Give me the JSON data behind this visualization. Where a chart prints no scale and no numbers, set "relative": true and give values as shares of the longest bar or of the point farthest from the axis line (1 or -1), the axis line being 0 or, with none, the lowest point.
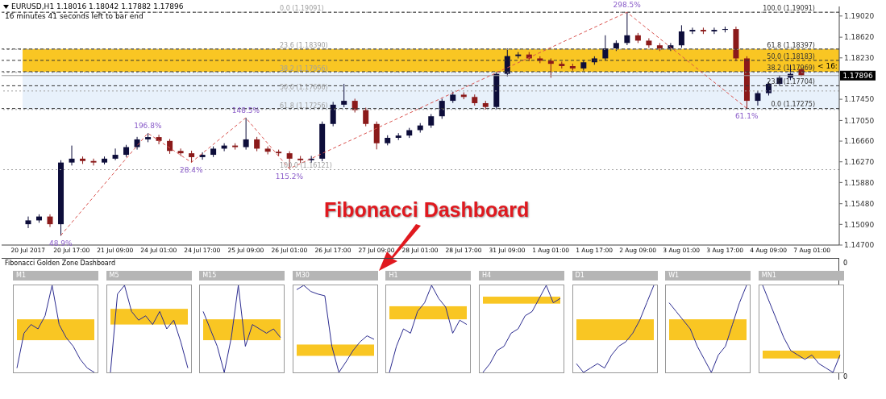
{
  "chart_data": [
    {
      "type": "candlestick",
      "title": "EURUSD,H1  1.18016 1.18042 1.17882 1.17896",
      "subtitle": "16 minutes 41 seconds left to bar end",
      "categories": [
        "20 Jul 2017",
        null,
        null,
        null,
        "20 Jul 17:00",
        null,
        null,
        null,
        "21 Jul 09:00",
        null,
        null,
        null,
        "24 Jul 01:00",
        null,
        null,
        null,
        "24 Jul 17:00",
        null,
        null,
        null,
        "25 Jul 09:00",
        null,
        null,
        null,
        "26 Jul 01:00",
        null,
        null,
        null,
        "26 Jul 17:00",
        null,
        null,
        null,
        "27 Jul 09:00",
        null,
        null,
        null,
        "28 Jul 01:00",
        null,
        null,
        null,
        "28 Jul 17:00",
        null,
        null,
        null,
        "31 Jul 09:00",
        null,
        null,
        null,
        "1 Aug 01:00",
        null,
        null,
        null,
        "1 Aug 17:00",
        null,
        null,
        null,
        "2 Aug 09:00",
        null,
        null,
        null,
        "3 Aug 01:00",
        null,
        null,
        null,
        "3 Aug 17:00",
        null,
        null,
        null,
        "4 Aug 09:00",
        null,
        null,
        null,
        "7 Aug 01:00",
        null,
        null
      ],
      "ohlc": [
        [
          1.15093,
          1.15238,
          1.1502,
          1.15165
        ],
        [
          1.15165,
          1.1528,
          1.1512,
          1.15238
        ],
        [
          1.15238,
          1.1528,
          1.1504,
          1.15093
        ],
        [
          1.15093,
          1.163,
          1.14875,
          1.16256
        ],
        [
          1.16256,
          1.16576,
          1.162,
          1.16329
        ],
        [
          1.16329,
          1.1637,
          1.1623,
          1.16285
        ],
        [
          1.16285,
          1.1633,
          1.162,
          1.16256
        ],
        [
          1.16256,
          1.1637,
          1.1622,
          1.16329
        ],
        [
          1.16329,
          1.1652,
          1.163,
          1.16402
        ],
        [
          1.16402,
          1.1659,
          1.1636,
          1.16547
        ],
        [
          1.16547,
          1.1674,
          1.165,
          1.16693
        ],
        [
          1.16693,
          1.16809,
          1.1664,
          1.16736
        ],
        [
          1.16736,
          1.1678,
          1.166,
          1.16664
        ],
        [
          1.16664,
          1.167,
          1.1642,
          1.16475
        ],
        [
          1.16475,
          1.1652,
          1.1638,
          1.16431
        ],
        [
          1.16431,
          1.1648,
          1.16256,
          1.16358
        ],
        [
          1.16358,
          1.1645,
          1.1631,
          1.16402
        ],
        [
          1.16402,
          1.1656,
          1.1636,
          1.16518
        ],
        [
          1.16518,
          1.1662,
          1.1647,
          1.16576
        ],
        [
          1.16576,
          1.1662,
          1.165,
          1.16547
        ],
        [
          1.16547,
          1.171,
          1.165,
          1.16693
        ],
        [
          1.16693,
          1.1674,
          1.1647,
          1.16518
        ],
        [
          1.16518,
          1.1656,
          1.1641,
          1.1646
        ],
        [
          1.1646,
          1.165,
          1.1638,
          1.16431
        ],
        [
          1.16431,
          1.1647,
          1.1614,
          1.16329
        ],
        [
          1.16329,
          1.1638,
          1.1625,
          1.163
        ],
        [
          1.163,
          1.1638,
          1.1625,
          1.16329
        ],
        [
          1.16329,
          1.1703,
          1.1628,
          1.16984
        ],
        [
          1.16984,
          1.174,
          1.1694,
          1.17347
        ],
        [
          1.17347,
          1.1774,
          1.173,
          1.1742
        ],
        [
          1.1742,
          1.1746,
          1.172,
          1.17245
        ],
        [
          1.17245,
          1.1729,
          1.1694,
          1.16984
        ],
        [
          1.16984,
          1.1703,
          1.16504,
          1.1662
        ],
        [
          1.1662,
          1.1677,
          1.1658,
          1.16722
        ],
        [
          1.16722,
          1.1681,
          1.1668,
          1.16765
        ],
        [
          1.16765,
          1.1691,
          1.1672,
          1.16867
        ],
        [
          1.16867,
          1.17,
          1.1682,
          1.16955
        ],
        [
          1.16955,
          1.1717,
          1.1691,
          1.17129
        ],
        [
          1.17129,
          1.1746,
          1.1708,
          1.1742
        ],
        [
          1.1742,
          1.17594,
          1.1738,
          1.17536
        ],
        [
          1.17536,
          1.1758,
          1.1745,
          1.17493
        ],
        [
          1.17493,
          1.1754,
          1.1733,
          1.17376
        ],
        [
          1.17376,
          1.1742,
          1.17256,
          1.17304
        ],
        [
          1.17304,
          1.1797,
          1.1726,
          1.17929
        ],
        [
          1.17929,
          1.18409,
          1.1788,
          1.18264
        ],
        [
          1.18264,
          1.1834,
          1.1822,
          1.18293
        ],
        [
          1.18293,
          1.1834,
          1.1817,
          1.1822
        ],
        [
          1.1822,
          1.1826,
          1.1813,
          1.18176
        ],
        [
          1.18176,
          1.1822,
          1.17856,
          1.18118
        ],
        [
          1.18118,
          1.1816,
          1.1803,
          1.18075
        ],
        [
          1.18075,
          1.1812,
          1.1799,
          1.18031
        ],
        [
          1.18031,
          1.1819,
          1.1799,
          1.18147
        ],
        [
          1.18147,
          1.1826,
          1.181,
          1.1822
        ],
        [
          1.1822,
          1.18656,
          1.1818,
          1.18409
        ],
        [
          1.18409,
          1.1856,
          1.1836,
          1.18511
        ],
        [
          1.18511,
          1.19091,
          1.1847,
          1.18656
        ],
        [
          1.18656,
          1.187,
          1.1851,
          1.18555
        ],
        [
          1.18555,
          1.186,
          1.1842,
          1.18467
        ],
        [
          1.18467,
          1.1851,
          1.1836,
          1.18409
        ],
        [
          1.18409,
          1.1851,
          1.1836,
          1.18467
        ],
        [
          1.18467,
          1.18845,
          1.1842,
          1.18729
        ],
        [
          1.18729,
          1.188,
          1.1868,
          1.18758
        ],
        [
          1.18758,
          1.188,
          1.1868,
          1.18729
        ],
        [
          1.18729,
          1.188,
          1.1868,
          1.18758
        ],
        [
          1.18758,
          1.1882,
          1.1871,
          1.18773
        ],
        [
          1.18773,
          1.1882,
          1.1817,
          1.1822
        ],
        [
          1.1822,
          1.1826,
          1.17275,
          1.1742
        ],
        [
          1.1742,
          1.1761,
          1.1733,
          1.17565
        ],
        [
          1.17565,
          1.1778,
          1.1752,
          1.1774
        ],
        [
          1.1774,
          1.179,
          1.177,
          1.17856
        ],
        [
          1.17856,
          1.181,
          1.1781,
          1.17929
        ],
        [
          1.18016,
          1.18042,
          1.17882,
          1.17896
        ],
        null,
        null,
        null
      ],
      "colors": [
        "#0d0d3a",
        "#0d0d3a",
        "#8b1a1a",
        "#0d0d3a",
        "#0d0d3a",
        "#8b1a1a",
        "#8b1a1a",
        "#0d0d3a",
        "#0d0d3a",
        "#0d0d3a",
        "#0d0d3a",
        "#0d0d3a",
        "#8b1a1a",
        "#8b1a1a",
        "#8b1a1a",
        "#8b1a1a",
        "#0d0d3a",
        "#0d0d3a",
        "#0d0d3a",
        "#8b1a1a",
        "#0d0d3a",
        "#8b1a1a",
        "#8b1a1a",
        "#8b1a1a",
        "#8b1a1a",
        "#8b1a1a",
        "#0d0d3a",
        "#0d0d3a",
        "#0d0d3a",
        "#0d0d3a",
        "#8b1a1a",
        "#8b1a1a",
        "#8b1a1a",
        "#0d0d3a",
        "#0d0d3a",
        "#0d0d3a",
        "#0d0d3a",
        "#0d0d3a",
        "#0d0d3a",
        "#0d0d3a",
        "#8b1a1a",
        "#8b1a1a",
        "#8b1a1a",
        "#0d0d3a",
        "#0d0d3a",
        "#0d0d3a",
        "#8b1a1a",
        "#8b1a1a",
        "#8b1a1a",
        "#8b1a1a",
        "#8b1a1a",
        "#0d0d3a",
        "#0d0d3a",
        "#0d0d3a",
        "#0d0d3a",
        "#0d0d3a",
        "#8b1a1a",
        "#8b1a1a",
        "#8b1a1a",
        "#0d0d3a",
        "#0d0d3a",
        "#0d0d3a",
        "#8b1a1a",
        "#0d0d3a",
        "#0d0d3a",
        "#8b1a1a",
        "#8b1a1a",
        "#0d0d3a",
        "#0d0d3a",
        "#0d0d3a",
        "#0d0d3a",
        "#8b1a1a",
        null,
        null,
        null
      ],
      "series": [
        {
          "type": "line",
          "color": "#d9534f",
          "line_style": "dashed",
          "values": [
            null,
            null,
            null,
            1.1488,
            null,
            null,
            null,
            null,
            null,
            null,
            null,
            1.1681,
            null,
            null,
            null,
            1.1626,
            null,
            null,
            null,
            null,
            1.171,
            null,
            null,
            null,
            1.1614,
            null,
            null,
            null,
            null,
            null,
            null,
            null,
            null,
            null,
            null,
            null,
            null,
            null,
            null,
            null,
            null,
            null,
            null,
            null,
            null,
            null,
            null,
            null,
            null,
            null,
            null,
            null,
            null,
            null,
            null,
            1.1909,
            null,
            null,
            null,
            null,
            null,
            null,
            null,
            null,
            null,
            null,
            1.1728,
            null,
            null,
            null,
            null,
            null,
            null,
            null,
            null
          ]
        }
      ],
      "ylim": [
        1.147,
        1.192
      ],
      "yticks": [
        {
          "value": 1.1902,
          "label": "1.19020"
        },
        {
          "value": 1.1862,
          "label": "1.18620"
        },
        {
          "value": 1.1823,
          "label": "1.18230"
        },
        {
          "value": 1.1745,
          "label": "1.17450"
        },
        {
          "value": 1.1705,
          "label": "1.17050"
        },
        {
          "value": 1.1666,
          "label": "1.16660"
        },
        {
          "value": 1.1627,
          "label": "1.16270"
        },
        {
          "value": 1.1588,
          "label": "1.15880"
        },
        {
          "value": 1.1548,
          "label": "1.15480"
        },
        {
          "value": 1.1509,
          "label": "1.15090"
        },
        {
          "value": 1.147,
          "label": "1.14700"
        }
      ],
      "bands": [
        {
          "axis": "y",
          "from": 1.17256,
          "to": 1.17956,
          "color": "#e8f1fb"
        },
        {
          "axis": "y",
          "from": 1.17969,
          "to": 1.18397,
          "color": "#f9c623"
        }
      ],
      "ref_lines": [
        {
          "axis": "y",
          "value": 1.19091,
          "label": "0.0 (1.19091)",
          "color": "#a0a0a0",
          "line_style": "dotted"
        },
        {
          "axis": "y",
          "value": 1.1839,
          "label": "23.6 (1.18390)",
          "color": "#a0a0a0",
          "line_style": "dotted"
        },
        {
          "axis": "y",
          "value": 1.17956,
          "label": "38.2 (1.17956)",
          "color": "#a0a0a0",
          "line_style": "dotted"
        },
        {
          "axis": "y",
          "value": 1.17606,
          "label": "50.0 (1.17606)",
          "color": "#a0a0a0",
          "line_style": "dotted"
        },
        {
          "axis": "y",
          "value": 1.17256,
          "label": "61.8 (1.17256)",
          "color": "#a0a0a0",
          "line_style": "dotted"
        },
        {
          "axis": "y",
          "value": 1.16121,
          "label": "100.0 (1.16121)",
          "color": "#a0a0a0",
          "line_style": "dotted"
        },
        {
          "axis": "y",
          "value": 1.19091,
          "label": "100.0 (1.19091)",
          "color": "#333333",
          "line_style": "dashed"
        },
        {
          "axis": "y",
          "value": 1.18397,
          "label": "61.8 (1.18397)",
          "color": "#333333",
          "line_style": "dashed"
        },
        {
          "axis": "y",
          "value": 1.18183,
          "label": "50.0 (1.18183)",
          "color": "#333333",
          "line_style": "dashed"
        },
        {
          "axis": "y",
          "value": 1.17969,
          "label": "38.2 (1.17969)",
          "color": "#333333",
          "line_style": "dashed"
        },
        {
          "axis": "y",
          "value": 1.17704,
          "label": "23.6 (1.17704)",
          "color": "#333333",
          "line_style": "dashed"
        },
        {
          "axis": "y",
          "value": 1.17275,
          "label": "0.0 (1.17275)",
          "color": "#333333",
          "line_style": "dashed"
        },
        {
          "axis": "y",
          "value": 1.17896,
          "label": "1.17896",
          "color": "#a0a0a0",
          "line_style": "solid"
        }
      ],
      "annotations": [
        "< 16:",
        "Fibonacci Dashboard",
        "Fibonacci Golden Zone Dashboard",
        "0",
        "0",
        {
          "text": "48.9%",
          "y": 1.1488
        },
        {
          "text": "196.8%",
          "y": 1.1681
        },
        {
          "text": "28.4%",
          "y": 1.1626
        },
        {
          "text": "148.5%",
          "y": 1.171
        },
        {
          "text": "115.2%",
          "y": 1.1614
        },
        {
          "text": "298.5%",
          "y": 1.1909
        },
        {
          "text": "61.1%",
          "y": 1.1728
        }
      ]
    },
    {
      "type": "line",
      "title": "M1",
      "relative": true,
      "categories": [
        null,
        null,
        null,
        null,
        null,
        null,
        null,
        null,
        null,
        null,
        null,
        null
      ],
      "values": [
        0.05,
        0.45,
        0.55,
        0.5,
        0.65,
        1,
        0.55,
        0.4,
        0.3,
        0.15,
        0.05,
        0
      ],
      "color": "#2b2b8f",
      "bands": [
        {
          "axis": "y",
          "from": 0.37,
          "to": 0.61,
          "color": "#f9c623"
        }
      ]
    },
    {
      "type": "line",
      "title": "M5",
      "relative": true,
      "categories": [
        null,
        null,
        null,
        null,
        null,
        null,
        null,
        null,
        null,
        null,
        null,
        null
      ],
      "values": [
        0,
        0.9,
        1,
        0.7,
        0.6,
        0.65,
        0.55,
        0.7,
        0.5,
        0.6,
        0.35,
        0.05
      ],
      "color": "#2b2b8f",
      "bands": [
        {
          "axis": "y",
          "from": 0.55,
          "to": 0.73,
          "color": "#f9c623"
        }
      ]
    },
    {
      "type": "line",
      "title": "M15",
      "relative": true,
      "categories": [
        null,
        null,
        null,
        null,
        null,
        null,
        null,
        null,
        null,
        null,
        null,
        null
      ],
      "values": [
        0.7,
        0.5,
        0.3,
        0,
        0.4,
        1,
        0.3,
        0.55,
        0.5,
        0.45,
        0.5,
        0.4
      ],
      "color": "#2b2b8f",
      "bands": [
        {
          "axis": "y",
          "from": 0.37,
          "to": 0.61,
          "color": "#f9c623"
        }
      ]
    },
    {
      "type": "line",
      "title": "M30",
      "relative": true,
      "categories": [
        null,
        null,
        null,
        null,
        null,
        null,
        null,
        null,
        null,
        null,
        null,
        null
      ],
      "values": [
        0.95,
        1,
        0.93,
        0.9,
        0.88,
        0.3,
        0,
        0.12,
        0.25,
        0.35,
        0.42,
        0.38
      ],
      "color": "#2b2b8f",
      "bands": [
        {
          "axis": "y",
          "from": 0.19,
          "to": 0.32,
          "color": "#f9c623"
        }
      ]
    },
    {
      "type": "line",
      "title": "H1",
      "relative": true,
      "categories": [
        null,
        null,
        null,
        null,
        null,
        null,
        null,
        null,
        null,
        null,
        null,
        null
      ],
      "values": [
        0,
        0.3,
        0.5,
        0.45,
        0.7,
        0.8,
        1,
        0.85,
        0.75,
        0.45,
        0.6,
        0.55
      ],
      "color": "#2b2b8f",
      "bands": [
        {
          "axis": "y",
          "from": 0.61,
          "to": 0.76,
          "color": "#f9c623"
        }
      ]
    },
    {
      "type": "line",
      "title": "H4",
      "relative": true,
      "categories": [
        null,
        null,
        null,
        null,
        null,
        null,
        null,
        null,
        null,
        null,
        null,
        null
      ],
      "values": [
        0,
        0.1,
        0.25,
        0.3,
        0.45,
        0.5,
        0.65,
        0.7,
        0.85,
        1,
        0.8,
        0.85
      ],
      "color": "#2b2b8f",
      "bands": [
        {
          "axis": "y",
          "from": 0.79,
          "to": 0.87,
          "color": "#f9c623"
        }
      ]
    },
    {
      "type": "line",
      "title": "D1",
      "relative": true,
      "categories": [
        null,
        null,
        null,
        null,
        null,
        null,
        null,
        null,
        null,
        null,
        null,
        null
      ],
      "values": [
        0.1,
        0,
        0.05,
        0.1,
        0.05,
        0.2,
        0.3,
        0.35,
        0.45,
        0.6,
        0.8,
        1
      ],
      "color": "#2b2b8f",
      "bands": [
        {
          "axis": "y",
          "from": 0.37,
          "to": 0.61,
          "color": "#f9c623"
        }
      ]
    },
    {
      "type": "line",
      "title": "W1",
      "relative": true,
      "categories": [
        null,
        null,
        null,
        null,
        null,
        null,
        null,
        null,
        null,
        null,
        null,
        null
      ],
      "values": [
        0.8,
        0.7,
        0.6,
        0.5,
        0.3,
        0.15,
        0,
        0.2,
        0.3,
        0.55,
        0.8,
        1
      ],
      "color": "#2b2b8f",
      "bands": [
        {
          "axis": "y",
          "from": 0.37,
          "to": 0.61,
          "color": "#f9c623"
        }
      ]
    },
    {
      "type": "line",
      "title": "MN1",
      "relative": true,
      "categories": [
        null,
        null,
        null,
        null,
        null,
        null,
        null,
        null,
        null,
        null,
        null,
        null
      ],
      "values": [
        1,
        0.8,
        0.6,
        0.4,
        0.25,
        0.2,
        0.15,
        0.2,
        0.1,
        0.05,
        0,
        0.2
      ],
      "color": "#2b2b8f",
      "bands": [
        {
          "axis": "y",
          "from": 0.16,
          "to": 0.25,
          "color": "#f9c623"
        }
      ]
    }
  ]
}
